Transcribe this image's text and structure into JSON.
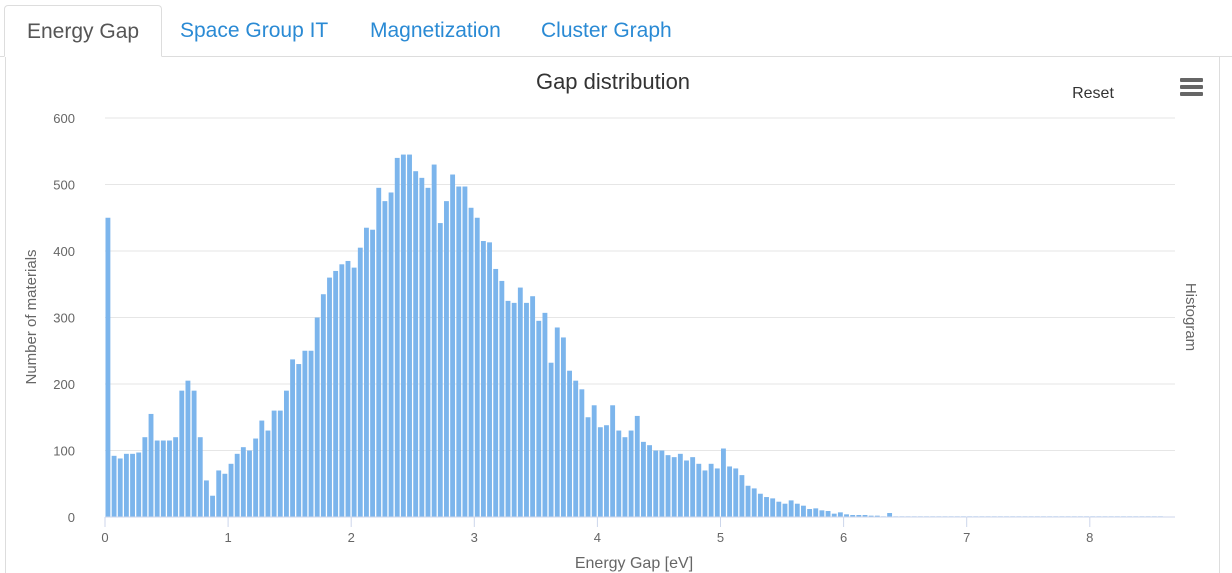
{
  "tabs": [
    {
      "label": "Energy Gap",
      "active": true
    },
    {
      "label": "Space Group IT",
      "active": false
    },
    {
      "label": "Magnetization",
      "active": false
    },
    {
      "label": "Cluster Graph",
      "active": false
    }
  ],
  "chart_controls": {
    "reset_label": "Reset",
    "menu_icon": "hamburger-menu-icon",
    "side_label": "Histogram"
  },
  "colors": {
    "bar": "#7cb5ec",
    "tab_link": "#2a8ad4",
    "tab_active": "#555555"
  },
  "chart_data": {
    "type": "bar",
    "title": "Gap distribution",
    "xlabel": "Energy Gap [eV]",
    "ylabel": "Number of materials",
    "xlim": [
      0,
      8.7
    ],
    "ylim": [
      0,
      600
    ],
    "x_ticks": [
      "0",
      "1",
      "2",
      "3",
      "4",
      "5",
      "6",
      "7",
      "8"
    ],
    "y_ticks": [
      "0",
      "100",
      "200",
      "300",
      "400",
      "500",
      "600"
    ],
    "grid": true,
    "bin_width": 0.05,
    "bin_start": 0,
    "values": [
      450,
      92,
      88,
      95,
      95,
      97,
      120,
      155,
      115,
      115,
      115,
      120,
      190,
      205,
      190,
      120,
      55,
      32,
      70,
      65,
      80,
      95,
      105,
      100,
      118,
      145,
      130,
      160,
      160,
      190,
      237,
      230,
      250,
      250,
      300,
      335,
      360,
      370,
      380,
      385,
      375,
      405,
      435,
      432,
      495,
      475,
      488,
      540,
      545,
      545,
      520,
      510,
      495,
      530,
      442,
      475,
      515,
      497,
      497,
      465,
      450,
      415,
      413,
      373,
      355,
      325,
      322,
      345,
      322,
      332,
      295,
      307,
      232,
      285,
      270,
      220,
      205,
      192,
      150,
      168,
      135,
      138,
      168,
      130,
      120,
      130,
      152,
      113,
      108,
      100,
      100,
      93,
      90,
      95,
      85,
      90,
      80,
      70,
      80,
      73,
      103,
      76,
      73,
      63,
      47,
      43,
      35,
      30,
      28,
      23,
      20,
      25,
      20,
      17,
      12,
      13,
      10,
      9,
      5,
      7,
      4,
      3,
      3,
      3,
      2,
      2,
      1,
      6,
      1,
      1,
      1,
      1,
      1,
      1,
      1,
      1,
      1,
      1,
      1,
      1,
      1,
      1,
      1,
      1,
      1,
      1,
      1,
      1,
      1,
      1,
      1,
      1,
      1,
      1,
      1,
      1,
      1,
      1,
      1,
      1,
      1,
      1,
      1,
      1,
      1,
      1,
      1,
      1,
      1,
      1,
      1,
      1
    ]
  }
}
